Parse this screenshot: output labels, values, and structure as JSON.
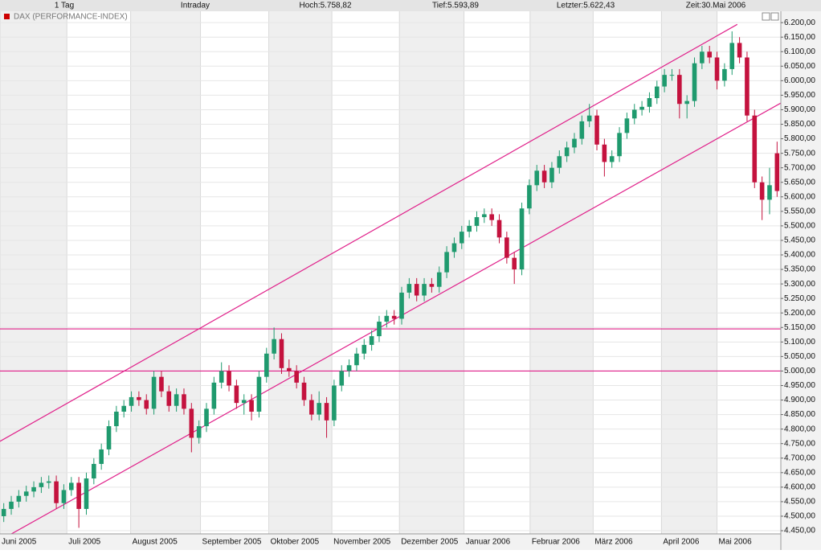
{
  "header": {
    "period": "1 Tag",
    "mode": "Intraday",
    "high": "Hoch:5.758,82",
    "low": "Tief:5.593,89",
    "last": "Letzter:5.622,43",
    "time": "Zeit:30.Mai 2006"
  },
  "chart_data": {
    "type": "candlestick",
    "title": "DAX (PERFORMANCE-INDEX)",
    "up_color": "#1f9a6e",
    "down_color": "#c4123e",
    "line_color": "#e0208a",
    "grid": true,
    "xlim": [
      0,
      104
    ],
    "xticks": [
      {
        "value": 0,
        "label": "Juni 2005"
      },
      {
        "value": 8.9,
        "label": "Juli 2005"
      },
      {
        "value": 17.4,
        "label": "August 2005"
      },
      {
        "value": 26.7,
        "label": "September 2005"
      },
      {
        "value": 35.8,
        "label": "Oktober 2005"
      },
      {
        "value": 44.2,
        "label": "November 2005"
      },
      {
        "value": 53.2,
        "label": "Dezember 2005"
      },
      {
        "value": 61.8,
        "label": "Januar 2006"
      },
      {
        "value": 70.6,
        "label": "Februar 2006"
      },
      {
        "value": 79,
        "label": "März 2006"
      },
      {
        "value": 88.1,
        "label": "April 2006"
      },
      {
        "value": 95.5,
        "label": "Mai 2006"
      }
    ],
    "ylim": [
      4439,
      6217
    ],
    "yticks": [
      {
        "value": 4450,
        "label": "4.450,00"
      },
      {
        "value": 4500,
        "label": "4.500,00"
      },
      {
        "value": 4550,
        "label": "4.550,00"
      },
      {
        "value": 4600,
        "label": "4.600,00"
      },
      {
        "value": 4650,
        "label": "4.650,00"
      },
      {
        "value": 4700,
        "label": "4.700,00"
      },
      {
        "value": 4750,
        "label": "4.750,00"
      },
      {
        "value": 4800,
        "label": "4.800,00"
      },
      {
        "value": 4850,
        "label": "4.850,00"
      },
      {
        "value": 4900,
        "label": "4.900,00"
      },
      {
        "value": 4950,
        "label": "4.950,00"
      },
      {
        "value": 5000,
        "label": "5.000,00"
      },
      {
        "value": 5050,
        "label": "5.050,00"
      },
      {
        "value": 5100,
        "label": "5.100,00"
      },
      {
        "value": 5150,
        "label": "5.150,00"
      },
      {
        "value": 5200,
        "label": "5.200,00"
      },
      {
        "value": 5250,
        "label": "5.250,00"
      },
      {
        "value": 5300,
        "label": "5.300,00"
      },
      {
        "value": 5350,
        "label": "5.350,00"
      },
      {
        "value": 5400,
        "label": "5.400,00"
      },
      {
        "value": 5450,
        "label": "5.450,00"
      },
      {
        "value": 5500,
        "label": "5.500,00"
      },
      {
        "value": 5550,
        "label": "5.550,00"
      },
      {
        "value": 5600,
        "label": "5.600,00"
      },
      {
        "value": 5650,
        "label": "5.650,00"
      },
      {
        "value": 5700,
        "label": "5.700,00"
      },
      {
        "value": 5750,
        "label": "5.750,00"
      },
      {
        "value": 5800,
        "label": "5.800,00"
      },
      {
        "value": 5850,
        "label": "5.850,00"
      },
      {
        "value": 5900,
        "label": "5.900,00"
      },
      {
        "value": 5950,
        "label": "5.950,00"
      },
      {
        "value": 6000,
        "label": "6.000,00"
      },
      {
        "value": 6050,
        "label": "6.050,00"
      },
      {
        "value": 6100,
        "label": "6.100,00"
      },
      {
        "value": 6150,
        "label": "6.150,00"
      },
      {
        "value": 6200,
        "label": "6.200,00"
      }
    ],
    "hlines": [
      5145,
      5000
    ],
    "trend_lines": [
      {
        "x": [
          0,
          98.2
        ],
        "y": [
          4758,
          6194
        ]
      },
      {
        "x": [
          0,
          104
        ],
        "y": [
          4417,
          5923
        ]
      }
    ],
    "open": [
      4500,
      4525,
      4550,
      4570,
      4585,
      4600,
      4615,
      4620,
      4545,
      4590,
      4615,
      4525,
      4630,
      4680,
      4730,
      4810,
      4860,
      4880,
      4910,
      4900,
      4870,
      4980,
      4930,
      4880,
      4920,
      4870,
      4770,
      4810,
      4870,
      4960,
      5000,
      4950,
      4890,
      4900,
      4860,
      4980,
      5060,
      5110,
      5010,
      5000,
      4960,
      4900,
      4850,
      4890,
      4830,
      4950,
      5000,
      5020,
      5060,
      5090,
      5120,
      5170,
      5190,
      5180,
      5270,
      5300,
      5260,
      5300,
      5290,
      5340,
      5410,
      5440,
      5480,
      5500,
      5530,
      5540,
      5520,
      5460,
      5390,
      5350,
      5560,
      5640,
      5690,
      5650,
      5700,
      5740,
      5770,
      5800,
      5860,
      5880,
      5780,
      5720,
      5740,
      5820,
      5870,
      5900,
      5910,
      5940,
      5980,
      6020,
      6020,
      5920,
      5930,
      6060,
      6100,
      6080,
      6000,
      6040,
      6130,
      6080,
      5880,
      5650,
      5590,
      5750
    ],
    "high": [
      4545,
      4570,
      4590,
      4605,
      4620,
      4635,
      4640,
      4640,
      4610,
      4635,
      4635,
      4650,
      4700,
      4750,
      4830,
      4880,
      4900,
      4930,
      4930,
      4920,
      5000,
      5000,
      4950,
      4940,
      4940,
      4890,
      4830,
      4890,
      4980,
      5030,
      5020,
      4970,
      4920,
      4920,
      5000,
      5080,
      5150,
      5130,
      5040,
      5020,
      4980,
      4920,
      4930,
      4910,
      4970,
      5020,
      5040,
      5080,
      5110,
      5140,
      5190,
      5210,
      5210,
      5290,
      5320,
      5320,
      5320,
      5320,
      5360,
      5430,
      5460,
      5500,
      5520,
      5550,
      5560,
      5560,
      5540,
      5480,
      5410,
      5580,
      5660,
      5710,
      5710,
      5720,
      5760,
      5790,
      5820,
      5880,
      5920,
      5900,
      5800,
      5760,
      5840,
      5890,
      5920,
      5930,
      5960,
      6000,
      6040,
      6040,
      6040,
      5950,
      6080,
      6120,
      6120,
      6100,
      6060,
      6170,
      6150,
      6100,
      5900,
      5670,
      5700,
      5790
    ],
    "low": [
      4480,
      4505,
      4530,
      4550,
      4565,
      4580,
      4595,
      4525,
      4525,
      4570,
      4460,
      4505,
      4610,
      4660,
      4710,
      4790,
      4840,
      4860,
      4880,
      4850,
      4850,
      4910,
      4860,
      4860,
      4850,
      4720,
      4750,
      4790,
      4850,
      4940,
      4930,
      4870,
      4850,
      4830,
      4840,
      4960,
      5040,
      4990,
      4980,
      4940,
      4880,
      4830,
      4830,
      4770,
      4810,
      4930,
      4980,
      5000,
      5040,
      5070,
      5100,
      5150,
      5160,
      5160,
      5250,
      5240,
      5240,
      5270,
      5270,
      5320,
      5390,
      5420,
      5460,
      5480,
      5510,
      5500,
      5440,
      5370,
      5300,
      5330,
      5540,
      5620,
      5630,
      5630,
      5680,
      5720,
      5750,
      5780,
      5840,
      5760,
      5670,
      5700,
      5720,
      5800,
      5850,
      5880,
      5890,
      5920,
      5960,
      6000,
      5870,
      5870,
      5910,
      6040,
      6060,
      5970,
      5980,
      6020,
      6060,
      5860,
      5630,
      5520,
      5540,
      5600
    ],
    "close": [
      4525,
      4550,
      4570,
      4585,
      4600,
      4615,
      4620,
      4545,
      4590,
      4615,
      4525,
      4630,
      4680,
      4730,
      4810,
      4860,
      4880,
      4910,
      4900,
      4870,
      4980,
      4930,
      4880,
      4920,
      4870,
      4770,
      4810,
      4870,
      4960,
      5000,
      4950,
      4890,
      4900,
      4860,
      4980,
      5060,
      5110,
      5010,
      5000,
      4960,
      4900,
      4850,
      4890,
      4830,
      4950,
      5000,
      5020,
      5060,
      5090,
      5120,
      5170,
      5190,
      5180,
      5270,
      5300,
      5260,
      5300,
      5290,
      5340,
      5410,
      5440,
      5480,
      5500,
      5530,
      5540,
      5520,
      5460,
      5390,
      5350,
      5560,
      5640,
      5690,
      5650,
      5700,
      5740,
      5770,
      5800,
      5860,
      5880,
      5780,
      5720,
      5740,
      5820,
      5870,
      5900,
      5910,
      5940,
      5980,
      6020,
      6020,
      5920,
      5930,
      6060,
      6100,
      6080,
      6000,
      6040,
      6130,
      6080,
      5880,
      5650,
      5590,
      5640,
      5620
    ]
  }
}
